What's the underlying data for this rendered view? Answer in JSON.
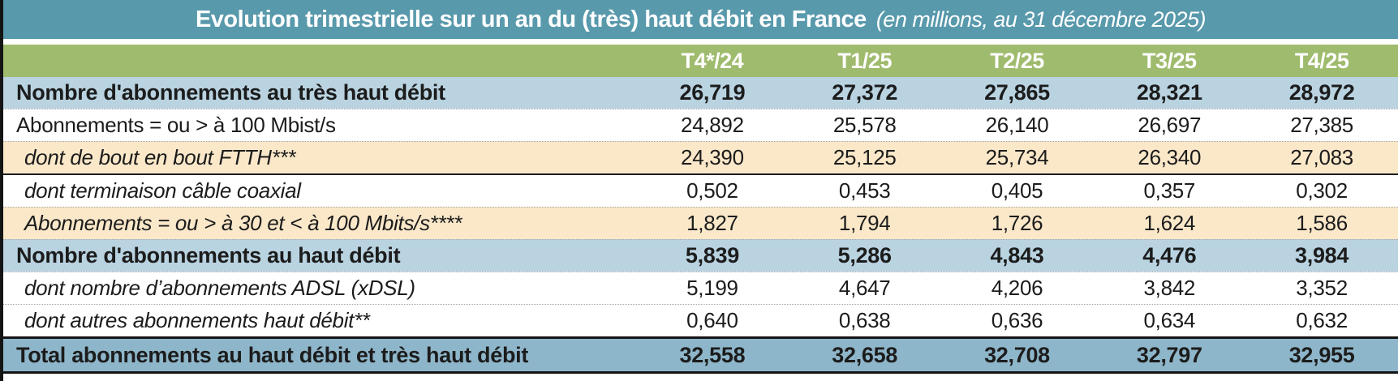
{
  "title": {
    "main": "Evolution trimestrielle sur un an du (très) haut débit en France",
    "subtitle": "(en millions, au 31 décembre 2025)"
  },
  "colors": {
    "title_bar": "#5899ac",
    "header_green": "#9fbb6d",
    "section_blue": "#b9d3e1",
    "total_blue": "#8eb6ca",
    "highlight_peach": "#fae8c9",
    "text": "#1c1c1c"
  },
  "table": {
    "columns": [
      "T4*/24",
      "T1/25",
      "T2/25",
      "T3/25",
      "T4/25"
    ],
    "rows": [
      {
        "label": "Nombre d'abonnements au très haut débit",
        "values": [
          "26,719",
          "27,372",
          "27,865",
          "28,321",
          "28,972"
        ]
      },
      {
        "label": "Abonnements = ou > à 100 Mbist/s",
        "values": [
          "24,892",
          "25,578",
          "26,140",
          "26,697",
          "27,385"
        ]
      },
      {
        "label": "dont de bout en bout FTTH***",
        "values": [
          "24,390",
          "25,125",
          "25,734",
          "26,340",
          "27,083"
        ]
      },
      {
        "label": "dont terminaison câble coaxial",
        "values": [
          "0,502",
          "0,453",
          "0,405",
          "0,357",
          "0,302"
        ]
      },
      {
        "label": "Abonnements = ou > à 30 et < à 100 Mbits/s****",
        "values": [
          "1,827",
          "1,794",
          "1,726",
          "1,624",
          "1,586"
        ]
      },
      {
        "label": "Nombre d'abonnements au haut débit",
        "values": [
          "5,839",
          "5,286",
          "4,843",
          "4,476",
          "3,984"
        ]
      },
      {
        "label": "dont nombre d’abonnements ADSL (xDSL)",
        "values": [
          "5,199",
          "4,647",
          "4,206",
          "3,842",
          "3,352"
        ]
      },
      {
        "label": "dont autres abonnements haut débit**",
        "values": [
          "0,640",
          "0,638",
          "0,636",
          "0,634",
          "0,632"
        ]
      },
      {
        "label": "Total abonnements au haut débit et très haut débit",
        "values": [
          "32,558",
          "32,658",
          "32,708",
          "32,797",
          "32,955"
        ]
      }
    ]
  },
  "chart_data": {
    "type": "table",
    "title": "Evolution trimestrielle sur un an du (très) haut débit en France (en millions, au 31 décembre 2025)",
    "unit": "millions d'abonnements",
    "categories": [
      "T4*/24",
      "T1/25",
      "T2/25",
      "T3/25",
      "T4/25"
    ],
    "series": [
      {
        "name": "Nombre d'abonnements au très haut débit",
        "values": [
          26.719,
          27.372,
          27.865,
          28.321,
          28.972
        ]
      },
      {
        "name": "Abonnements = ou > à 100 Mbist/s",
        "values": [
          24.892,
          25.578,
          26.14,
          26.697,
          27.385
        ]
      },
      {
        "name": "dont de bout en bout FTTH***",
        "values": [
          24.39,
          25.125,
          25.734,
          26.34,
          27.083
        ]
      },
      {
        "name": "dont terminaison câble coaxial",
        "values": [
          0.502,
          0.453,
          0.405,
          0.357,
          0.302
        ]
      },
      {
        "name": "Abonnements = ou > à 30 et < à 100 Mbits/s****",
        "values": [
          1.827,
          1.794,
          1.726,
          1.624,
          1.586
        ]
      },
      {
        "name": "Nombre d'abonnements au haut débit",
        "values": [
          5.839,
          5.286,
          4.843,
          4.476,
          3.984
        ]
      },
      {
        "name": "dont nombre d’abonnements ADSL (xDSL)",
        "values": [
          5.199,
          4.647,
          4.206,
          3.842,
          3.352
        ]
      },
      {
        "name": "dont autres abonnements haut débit**",
        "values": [
          0.64,
          0.638,
          0.636,
          0.634,
          0.632
        ]
      },
      {
        "name": "Total abonnements au haut débit et très haut débit",
        "values": [
          32.558,
          32.658,
          32.708,
          32.797,
          32.955
        ]
      }
    ]
  }
}
